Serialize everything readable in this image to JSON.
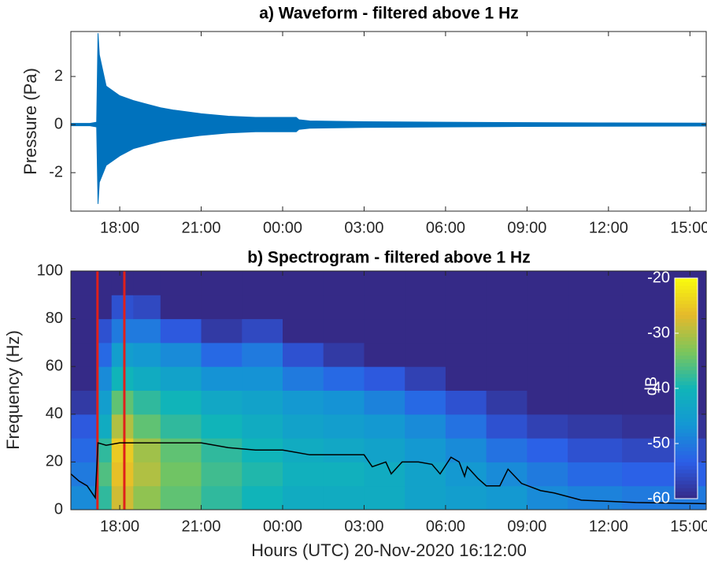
{
  "chart_data": [
    {
      "type": "area",
      "title": "a) Waveform - filtered above 1 Hz",
      "ylabel": "Pressure (Pa)",
      "xlim": [
        16.2,
        39.6
      ],
      "xticks": [
        {
          "value": 18,
          "label": "18:00"
        },
        {
          "value": 21,
          "label": "21:00"
        },
        {
          "value": 24,
          "label": "00:00"
        },
        {
          "value": 27,
          "label": "03:00"
        },
        {
          "value": 30,
          "label": "06:00"
        },
        {
          "value": 33,
          "label": "09:00"
        },
        {
          "value": 36,
          "label": "12:00"
        },
        {
          "value": 39,
          "label": "15:00"
        }
      ],
      "ylim": [
        -3.6,
        3.87
      ],
      "yticks": [
        -2,
        0,
        2
      ],
      "x": [
        16.2,
        16.9,
        17.15,
        17.2,
        17.25,
        17.5,
        18,
        18.5,
        19,
        19.5,
        20,
        21,
        22,
        23,
        24,
        24.5,
        24.6,
        25,
        27,
        30,
        33,
        36,
        39.6
      ],
      "series": [
        {
          "color": "#0072bd",
          "values": [
            0.05,
            0.05,
            0.1,
            3.8,
            2.9,
            1.6,
            1.2,
            1.0,
            0.85,
            0.7,
            0.6,
            0.45,
            0.35,
            0.3,
            0.3,
            0.3,
            0.2,
            0.15,
            0.12,
            0.1,
            0.08,
            0.07,
            0.06
          ]
        },
        {
          "color": "#0072bd",
          "values": [
            -0.05,
            -0.05,
            -0.1,
            -3.3,
            -2.4,
            -1.7,
            -1.3,
            -1.0,
            -0.85,
            -0.7,
            -0.6,
            -0.45,
            -0.35,
            -0.3,
            -0.3,
            -0.3,
            -0.2,
            -0.15,
            -0.12,
            -0.1,
            -0.08,
            -0.07,
            -0.06
          ]
        }
      ]
    },
    {
      "type": "heatmap",
      "title": "b) Spectrogram - filtered above 1 Hz",
      "ylabel": "Frequency (Hz)",
      "xlabel": "Hours (UTC) 20-Nov-2020 16:12:00",
      "xlim": [
        16.2,
        39.6
      ],
      "xticks": [
        {
          "value": 18,
          "label": "18:00"
        },
        {
          "value": 21,
          "label": "21:00"
        },
        {
          "value": 24,
          "label": "00:00"
        },
        {
          "value": 27,
          "label": "03:00"
        },
        {
          "value": 30,
          "label": "06:00"
        },
        {
          "value": 33,
          "label": "09:00"
        },
        {
          "value": 36,
          "label": "12:00"
        },
        {
          "value": 39,
          "label": "15:00"
        }
      ],
      "ylim": [
        0,
        100
      ],
      "yticks": [
        0,
        20,
        40,
        60,
        80,
        100
      ],
      "x_edges": [
        16.2,
        17.2,
        17.7,
        18.5,
        19.5,
        21,
        22.5,
        24,
        25.5,
        27,
        28.5,
        30,
        31.5,
        33,
        34.5,
        36.5,
        39.6
      ],
      "y_edges": [
        0,
        10,
        20,
        30,
        40,
        50,
        60,
        70,
        80,
        90,
        100
      ],
      "z": [
        [
          -48,
          -38,
          -28,
          -32,
          -35,
          -38,
          -40,
          -42,
          -42,
          -42,
          -44,
          -45,
          -46,
          -48,
          -49,
          -50
        ],
        [
          -50,
          -36,
          -26,
          -30,
          -34,
          -37,
          -39,
          -41,
          -41,
          -42,
          -44,
          -46,
          -48,
          -50,
          -52,
          -53
        ],
        [
          -52,
          -38,
          -25,
          -31,
          -35,
          -38,
          -40,
          -42,
          -43,
          -44,
          -46,
          -48,
          -51,
          -53,
          -55,
          -56
        ],
        [
          -54,
          -42,
          -30,
          -35,
          -38,
          -40,
          -42,
          -44,
          -45,
          -46,
          -48,
          -51,
          -55,
          -57,
          -58,
          -59
        ],
        [
          -58,
          -45,
          -35,
          -38,
          -40,
          -43,
          -44,
          -46,
          -47,
          -49,
          -52,
          -55,
          -58,
          -60,
          -60,
          -60
        ],
        [
          -60,
          -48,
          -40,
          -42,
          -44,
          -47,
          -47,
          -50,
          -52,
          -54,
          -57,
          -60,
          -60,
          -60,
          -60,
          -60
        ],
        [
          -60,
          -52,
          -45,
          -46,
          -48,
          -52,
          -50,
          -55,
          -58,
          -60,
          -60,
          -60,
          -60,
          -60,
          -60,
          -60
        ],
        [
          -60,
          -55,
          -50,
          -50,
          -54,
          -58,
          -56,
          -60,
          -60,
          -60,
          -60,
          -60,
          -60,
          -60,
          -60,
          -60
        ],
        [
          -60,
          -60,
          -55,
          -56,
          -60,
          -60,
          -60,
          -60,
          -60,
          -60,
          -60,
          -60,
          -60,
          -60,
          -60,
          -60
        ],
        [
          -60,
          -60,
          -60,
          -60,
          -60,
          -60,
          -60,
          -60,
          -60,
          -60,
          -60,
          -60,
          -60,
          -60,
          -60,
          -60
        ]
      ],
      "colormap": [
        "#352a87",
        "#2c5ee8",
        "#1496d4",
        "#10b4b9",
        "#7bc65b",
        "#e5b92b",
        "#f9fb0e"
      ],
      "clim": [
        -60,
        -20
      ],
      "cticks": [
        -60,
        -50,
        -40,
        -30,
        -20
      ],
      "clabel": "dB",
      "vlines": {
        "color": "#e0201b",
        "values": [
          17.18,
          18.17
        ]
      },
      "line": {
        "color": "#000000",
        "x": [
          16.2,
          16.5,
          16.8,
          17.1,
          17.2,
          17.5,
          18,
          19,
          20,
          21,
          22,
          23,
          24,
          25,
          26,
          27,
          27.3,
          27.8,
          28,
          28.4,
          29,
          29.5,
          29.8,
          30.2,
          30.5,
          30.7,
          30.8,
          31.2,
          31.5,
          32,
          32.3,
          32.8,
          33.5,
          34,
          35,
          37,
          39.6
        ],
        "values": [
          15,
          12,
          10,
          5,
          28,
          27,
          28,
          28,
          28,
          28,
          26,
          25,
          25,
          23,
          23,
          23,
          18,
          20,
          15,
          20,
          20,
          19,
          15,
          22,
          20,
          14,
          18,
          13,
          10,
          10,
          17,
          11,
          8,
          7,
          4,
          3,
          2.5
        ]
      }
    }
  ]
}
